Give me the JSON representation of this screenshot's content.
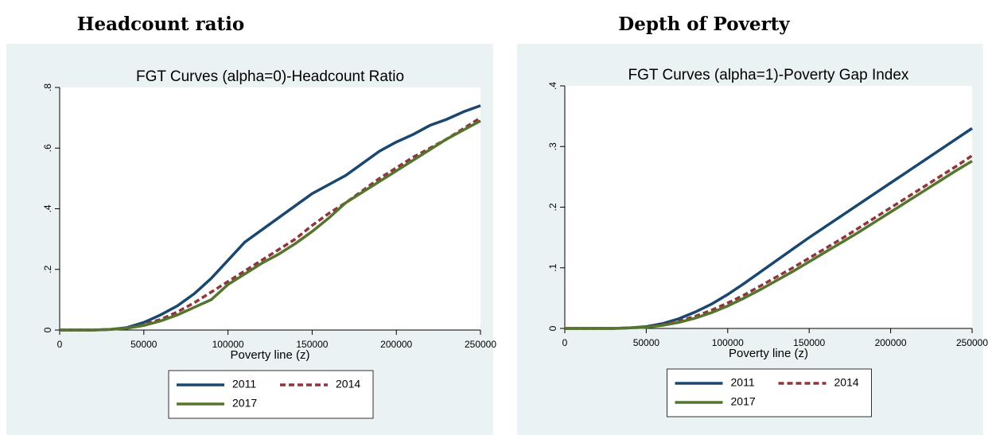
{
  "chart_data": [
    {
      "type": "line",
      "panel_title": "Headcount ratio",
      "title": "FGT Curves (alpha=0)-Headcount Ratio",
      "x_label": "Poverty line (z)",
      "x": [
        0,
        10000,
        20000,
        30000,
        40000,
        50000,
        60000,
        70000,
        80000,
        90000,
        100000,
        110000,
        120000,
        130000,
        140000,
        150000,
        160000,
        170000,
        180000,
        190000,
        200000,
        210000,
        220000,
        230000,
        240000,
        250000
      ],
      "series": [
        {
          "name": "2011",
          "color": "#1a476f",
          "line_style": "solid",
          "values": [
            0,
            0,
            0,
            0.002,
            0.008,
            0.025,
            0.05,
            0.08,
            0.12,
            0.17,
            0.23,
            0.29,
            0.33,
            0.37,
            0.41,
            0.45,
            0.48,
            0.51,
            0.55,
            0.59,
            0.62,
            0.645,
            0.675,
            0.695,
            0.72,
            0.74
          ]
        },
        {
          "name": "2014",
          "color": "#90353b",
          "line_style": "dashed",
          "values": [
            0,
            0,
            0,
            0.002,
            0.007,
            0.018,
            0.035,
            0.06,
            0.09,
            0.125,
            0.16,
            0.195,
            0.23,
            0.265,
            0.3,
            0.345,
            0.385,
            0.42,
            0.46,
            0.5,
            0.535,
            0.57,
            0.6,
            0.63,
            0.665,
            0.7
          ]
        },
        {
          "name": "2017",
          "color": "#55752f",
          "line_style": "solid",
          "values": [
            0,
            0,
            0,
            0.002,
            0.006,
            0.015,
            0.03,
            0.05,
            0.075,
            0.1,
            0.15,
            0.185,
            0.22,
            0.25,
            0.285,
            0.325,
            0.37,
            0.42,
            0.455,
            0.49,
            0.525,
            0.56,
            0.595,
            0.63,
            0.66,
            0.69
          ]
        }
      ],
      "xlim": [
        0,
        250000
      ],
      "xticks": [
        0,
        50000,
        100000,
        150000,
        200000,
        250000
      ],
      "ylim": [
        0,
        0.8
      ],
      "yticks": [
        0,
        {
          "value": 0.2,
          "label": ".2"
        },
        {
          "value": 0.4,
          "label": ".4"
        },
        {
          "value": 0.6,
          "label": ".6"
        },
        {
          "value": 0.8,
          "label": ".8"
        }
      ]
    },
    {
      "type": "line",
      "panel_title": "Depth of Poverty",
      "title": "FGT Curves (alpha=1)-Poverty Gap Index",
      "x_label": "Poverty line (z)",
      "x": [
        0,
        10000,
        20000,
        30000,
        40000,
        50000,
        60000,
        70000,
        80000,
        90000,
        100000,
        110000,
        120000,
        130000,
        140000,
        150000,
        160000,
        170000,
        180000,
        190000,
        200000,
        210000,
        220000,
        230000,
        240000,
        250000
      ],
      "series": [
        {
          "name": "2011",
          "color": "#1a476f",
          "line_style": "solid",
          "values": [
            0,
            0,
            0,
            0,
            0.001,
            0.003,
            0.008,
            0.016,
            0.027,
            0.04,
            0.056,
            0.074,
            0.093,
            0.112,
            0.131,
            0.15,
            0.168,
            0.186,
            0.204,
            0.222,
            0.24,
            0.258,
            0.276,
            0.294,
            0.312,
            0.33
          ]
        },
        {
          "name": "2014",
          "color": "#90353b",
          "line_style": "dashed",
          "values": [
            0,
            0,
            0,
            0,
            0.001,
            0.002,
            0.006,
            0.012,
            0.02,
            0.03,
            0.042,
            0.055,
            0.07,
            0.085,
            0.1,
            0.116,
            0.132,
            0.148,
            0.165,
            0.182,
            0.199,
            0.216,
            0.233,
            0.25,
            0.267,
            0.285
          ]
        },
        {
          "name": "2017",
          "color": "#55752f",
          "line_style": "solid",
          "values": [
            0,
            0,
            0,
            0,
            0.001,
            0.002,
            0.005,
            0.01,
            0.017,
            0.026,
            0.037,
            0.05,
            0.064,
            0.079,
            0.094,
            0.11,
            0.126,
            0.142,
            0.158,
            0.175,
            0.192,
            0.209,
            0.226,
            0.243,
            0.26,
            0.276
          ]
        }
      ],
      "xlim": [
        0,
        250000
      ],
      "xticks": [
        0,
        50000,
        100000,
        150000,
        200000,
        250000
      ],
      "ylim": [
        0,
        0.4
      ],
      "yticks": [
        0,
        {
          "value": 0.1,
          "label": ".1"
        },
        {
          "value": 0.2,
          "label": ".2"
        },
        {
          "value": 0.3,
          "label": ".3"
        },
        {
          "value": 0.4,
          "label": ".4"
        }
      ]
    }
  ]
}
